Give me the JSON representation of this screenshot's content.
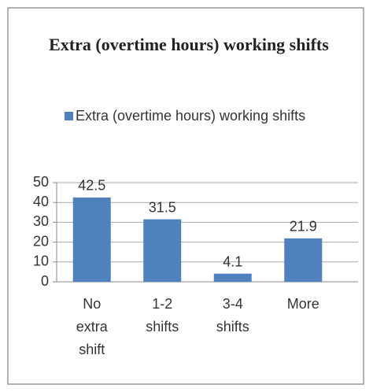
{
  "chart_data": {
    "type": "bar",
    "title": "Extra (overtime hours) working shifts",
    "categories": [
      "No extra shift",
      "1-2 shifts",
      "3-4 shifts",
      "More"
    ],
    "series": [
      {
        "name": "Extra (overtime hours) working shifts",
        "color": "#4f81bd",
        "values": [
          42.5,
          31.5,
          4.1,
          21.9
        ]
      }
    ],
    "ylim": [
      0,
      50
    ],
    "yticks": [
      0,
      10,
      20,
      30,
      40,
      50
    ],
    "grid": true,
    "legend": "top"
  }
}
